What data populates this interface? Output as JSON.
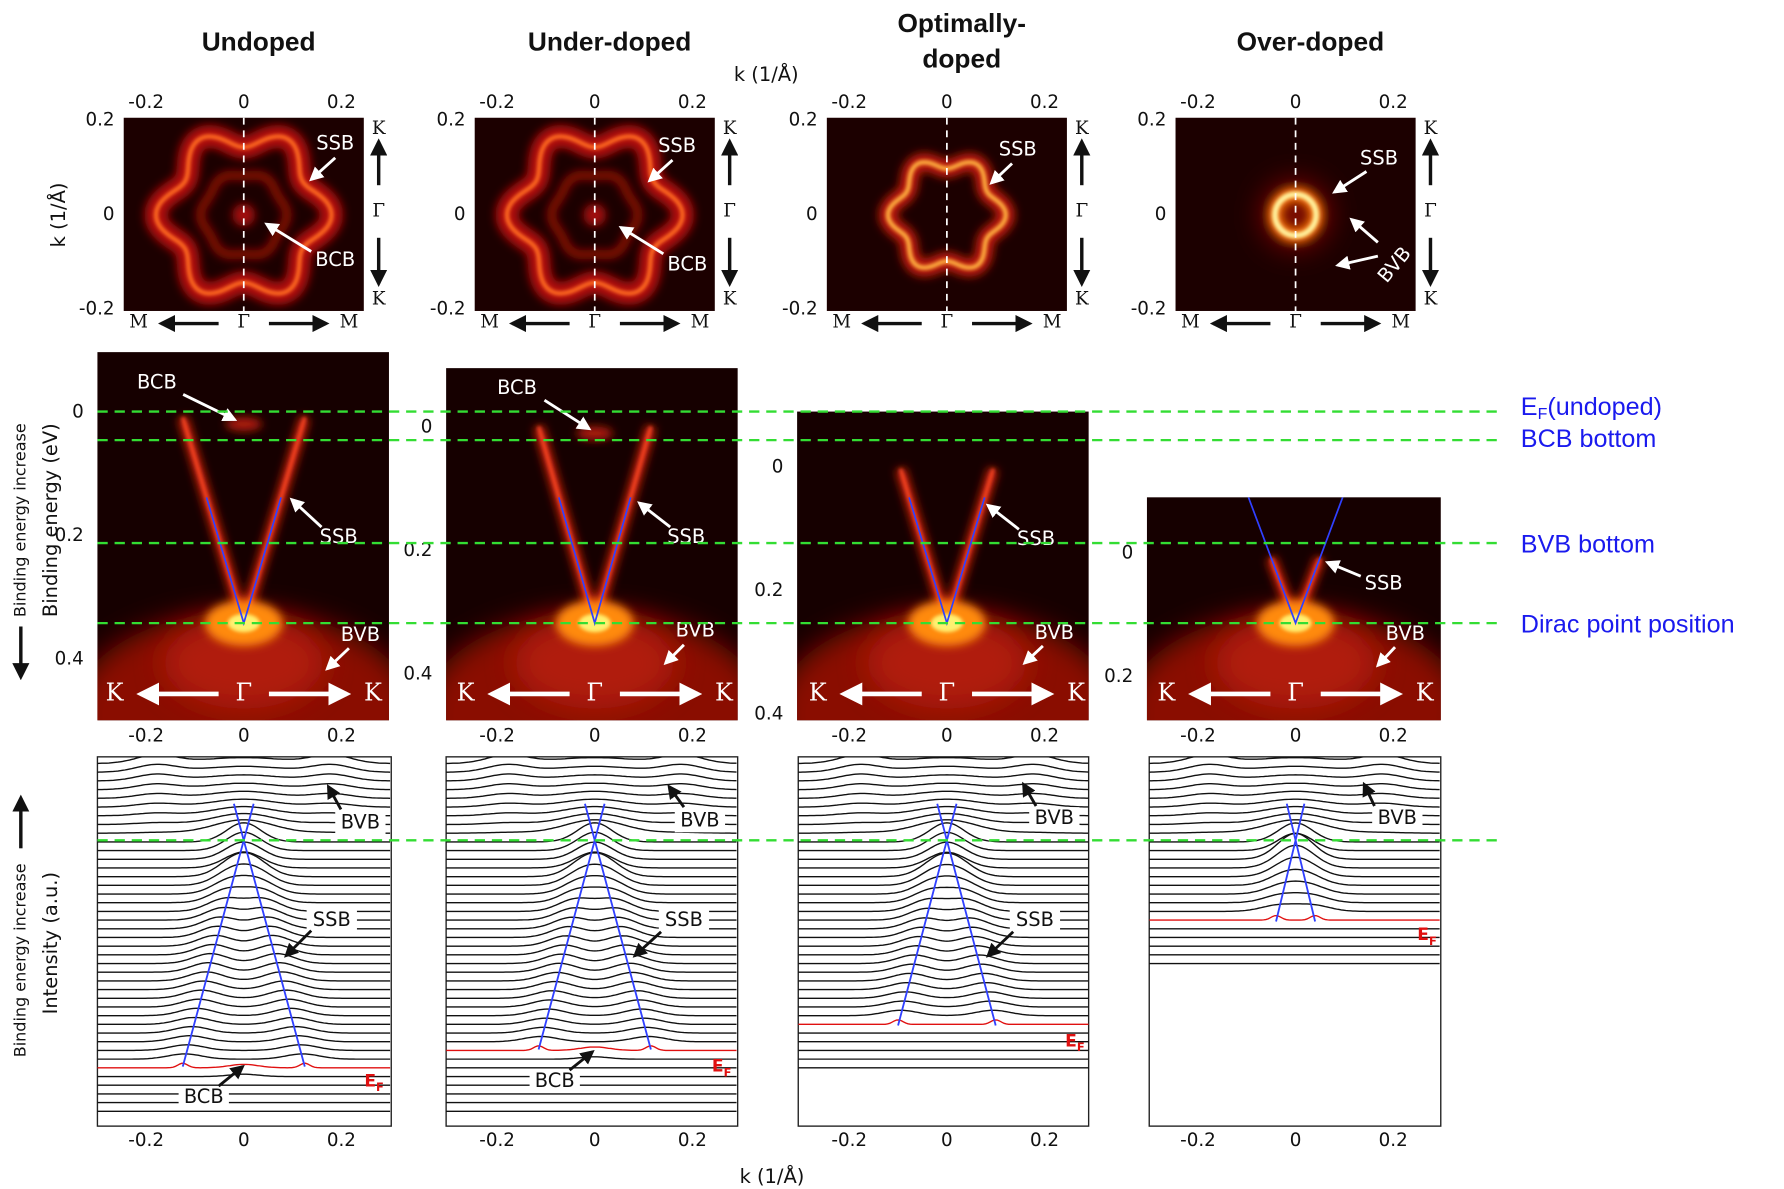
{
  "columns": [
    {
      "title_lines": [
        "Undoped"
      ],
      "fermi_surface": {
        "labels": [
          "SSB",
          "BCB"
        ]
      },
      "band": {
        "yticks": [
          0,
          0.2,
          0.4
        ],
        "labels": [
          "BCB",
          "SSB",
          "BVB"
        ]
      },
      "edc": {
        "labels": [
          "BVB",
          "SSB",
          "BCB"
        ]
      }
    },
    {
      "title_lines": [
        "Under-doped"
      ],
      "fermi_surface": {
        "labels": [
          "SSB",
          "BCB"
        ]
      },
      "band": {
        "yticks": [
          0,
          0.2,
          0.4
        ],
        "labels": [
          "BCB",
          "SSB",
          "BVB"
        ]
      },
      "edc": {
        "labels": [
          "BVB",
          "SSB",
          "BCB"
        ]
      }
    },
    {
      "title_lines": [
        "Optimally-",
        "doped"
      ],
      "fermi_surface": {
        "labels": [
          "SSB"
        ]
      },
      "band": {
        "yticks": [
          0,
          0.2,
          0.4
        ],
        "labels": [
          "SSB",
          "BVB"
        ]
      },
      "edc": {
        "labels": [
          "BVB",
          "SSB"
        ]
      }
    },
    {
      "title_lines": [
        "Over-doped"
      ],
      "fermi_surface": {
        "labels": [
          "SSB",
          "BVB"
        ]
      },
      "band": {
        "yticks": [
          0,
          0.2
        ],
        "labels": [
          "SSB",
          "BVB"
        ]
      },
      "edc": {
        "labels": [
          "BVB"
        ]
      }
    }
  ],
  "shared": {
    "k_ticks": [
      -0.2,
      0,
      0.2
    ],
    "fs_yticks": [
      0.2,
      0,
      -0.2
    ],
    "symbols": {
      "K": "K",
      "Gamma": "Γ",
      "M": "M"
    },
    "fermi_label": {
      "base": "E",
      "sub": "F"
    }
  },
  "axis_titles": {
    "k_top": "k (1/Å)",
    "k_left": "k (1/Å)",
    "binding_energy": "Binding energy (eV)",
    "binding_increase_band": "Binding energy increase",
    "intensity": "Intensity (a.u.)",
    "binding_increase_edc": "Binding energy increase",
    "k_bottom": "k (1/Å)"
  },
  "guides": [
    {
      "base": "E",
      "sub": "F",
      "text": "(undoped)"
    },
    {
      "text": "BCB bottom"
    },
    {
      "text": "BVB bottom"
    },
    {
      "text": "Dirac point position"
    }
  ]
}
